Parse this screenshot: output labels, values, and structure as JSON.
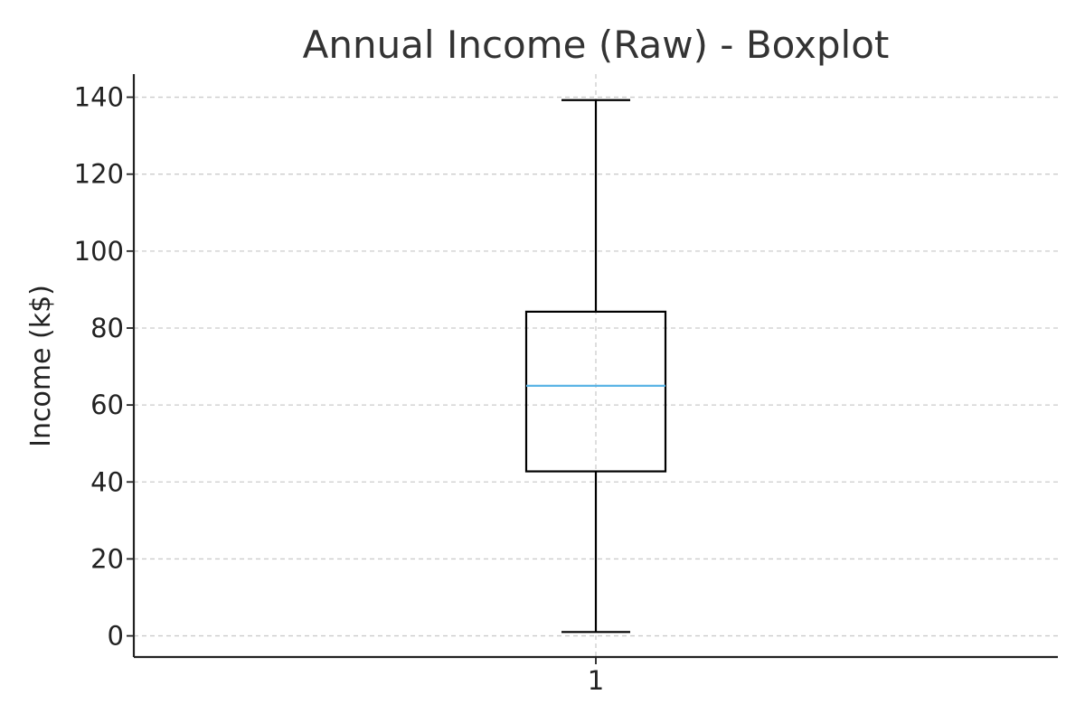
{
  "chart_data": {
    "type": "boxplot",
    "title": "Annual Income (Raw) - Boxplot",
    "xlabel": "",
    "ylabel": "Income (k$)",
    "categories": [
      "1"
    ],
    "ylim": [
      -5.5,
      146
    ],
    "yticks": [
      0,
      20,
      40,
      60,
      80,
      100,
      120,
      140
    ],
    "grid": true,
    "boxes": [
      {
        "category": "1",
        "whisker_low": 1,
        "q1": 42.75,
        "median": 65,
        "q3": 84.25,
        "whisker_high": 139.25
      }
    ],
    "colors": {
      "median": "#5ab4e5",
      "box": "#000000",
      "axis": "#222222",
      "grid": "#cccccc",
      "title": "#333333"
    }
  }
}
